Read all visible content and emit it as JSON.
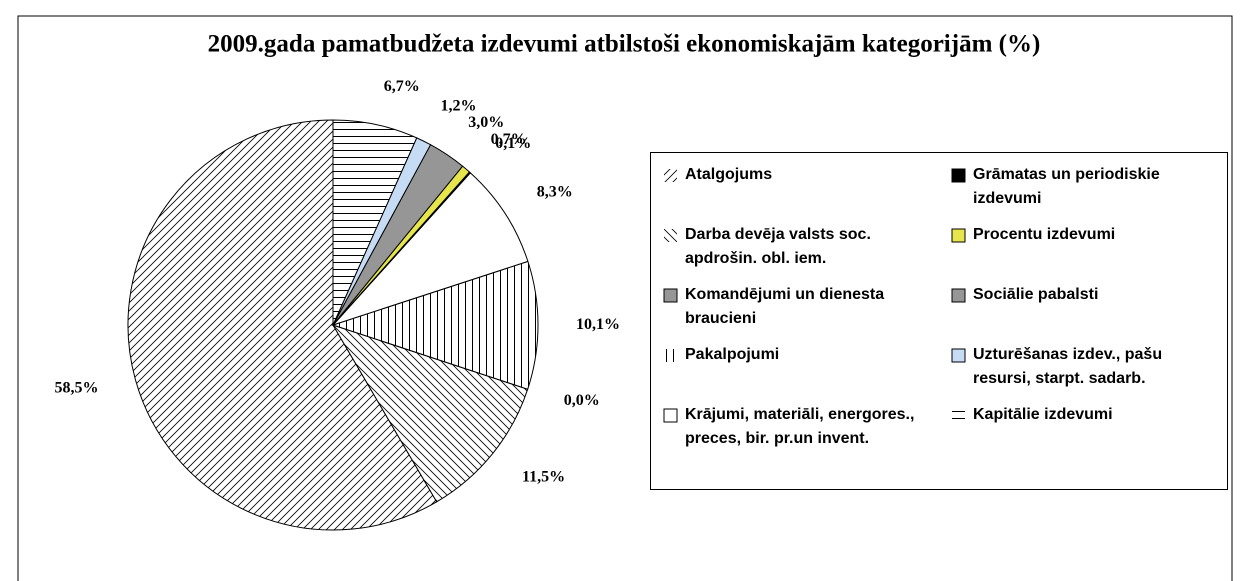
{
  "chart_data": {
    "type": "pie",
    "title": "2009.gada pamatbudžeta izdevumi atbilstoši ekonomiskajām kategorijām (%)",
    "categories": [
      "Atalgojums",
      "Darba devēja valsts soc. apdrošin. obl. iem.",
      "Komandējumi un dienesta braucieni",
      "Pakalpojumi",
      "Krājumi, materiāli, energores., preces, bir. pr.un invent.",
      "Grāmatas un periodiskie izdevumi",
      "Procentu izdevumi",
      "Sociālie pabalsti",
      "Uzturēšanas izdev., pašu resursi, starpt. sadarb.",
      "Kapitālie izdevumi"
    ],
    "values": [
      58.5,
      11.5,
      0.0,
      10.1,
      8.3,
      0.1,
      0.7,
      3.0,
      1.2,
      6.7
    ],
    "value_labels": [
      "58,5%",
      "11,5%",
      "0,0%",
      "10,1%",
      "8,3%",
      "0,1%",
      "0,7%",
      "3,0%",
      "1,2%",
      "6,7%"
    ],
    "colors": [
      "#ffffff",
      "#ffffff",
      "#969696",
      "#ffffff",
      "#ffffff",
      "#000000",
      "#e6e64c",
      "#969696",
      "#c6dcf5",
      "#ffffff"
    ],
    "patterns": [
      "forward",
      "backward",
      "solid",
      "vertical",
      "solid",
      "solid",
      "solid",
      "solid",
      "solid",
      "horizontal"
    ],
    "direction": "counterclockwise",
    "legend": "right"
  }
}
